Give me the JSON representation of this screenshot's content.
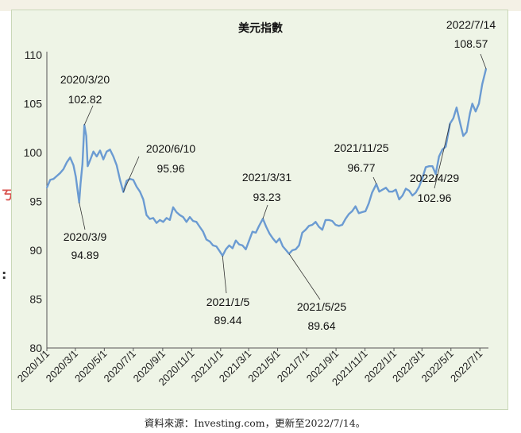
{
  "chart_data": {
    "type": "line",
    "title": "美元指數",
    "xlabel": "",
    "ylabel": "",
    "ylim": [
      80,
      110
    ],
    "yticks": [
      "110",
      "105",
      "100",
      "95",
      "90",
      "85",
      "80"
    ],
    "xticks": [
      "2020/1/1",
      "2020/3/1",
      "2020/5/1",
      "2020/7/1",
      "2020/9/1",
      "2020/11/1",
      "2021/1/1",
      "2021/3/1",
      "2021/5/1",
      "2021/7/1",
      "2021/9/1",
      "2021/11/1",
      "2022/1/1",
      "2022/3/1",
      "2022/5/1",
      "2022/7/1"
    ],
    "grid": false,
    "line_color": "#6b9bd2",
    "series": [
      {
        "points": [
          [
            "2020-01-01",
            96.4
          ],
          [
            "2020-01-08",
            97.2
          ],
          [
            "2020-01-15",
            97.3
          ],
          [
            "2020-01-22",
            97.6
          ],
          [
            "2020-01-29",
            97.9
          ],
          [
            "2020-02-05",
            98.3
          ],
          [
            "2020-02-12",
            99.0
          ],
          [
            "2020-02-19",
            99.5
          ],
          [
            "2020-02-26",
            98.7
          ],
          [
            "2020-03-02",
            97.5
          ],
          [
            "2020-03-09",
            94.89
          ],
          [
            "2020-03-12",
            96.8
          ],
          [
            "2020-03-16",
            98.8
          ],
          [
            "2020-03-20",
            102.82
          ],
          [
            "2020-03-24",
            101.7
          ],
          [
            "2020-03-27",
            98.6
          ],
          [
            "2020-04-01",
            99.2
          ],
          [
            "2020-04-08",
            100.1
          ],
          [
            "2020-04-15",
            99.6
          ],
          [
            "2020-04-22",
            100.2
          ],
          [
            "2020-04-29",
            99.3
          ],
          [
            "2020-05-06",
            100.1
          ],
          [
            "2020-05-13",
            100.3
          ],
          [
            "2020-05-20",
            99.6
          ],
          [
            "2020-05-27",
            98.7
          ],
          [
            "2020-06-03",
            97.2
          ],
          [
            "2020-06-10",
            95.96
          ],
          [
            "2020-06-17",
            97.1
          ],
          [
            "2020-06-24",
            97.3
          ],
          [
            "2020-07-01",
            97.2
          ],
          [
            "2020-07-08",
            96.5
          ],
          [
            "2020-07-15",
            96.0
          ],
          [
            "2020-07-22",
            95.2
          ],
          [
            "2020-07-29",
            93.6
          ],
          [
            "2020-08-05",
            93.2
          ],
          [
            "2020-08-12",
            93.3
          ],
          [
            "2020-08-19",
            92.8
          ],
          [
            "2020-08-26",
            93.1
          ],
          [
            "2020-09-02",
            92.9
          ],
          [
            "2020-09-09",
            93.3
          ],
          [
            "2020-09-16",
            93.1
          ],
          [
            "2020-09-23",
            94.4
          ],
          [
            "2020-09-30",
            93.9
          ],
          [
            "2020-10-07",
            93.6
          ],
          [
            "2020-10-14",
            93.4
          ],
          [
            "2020-10-21",
            92.9
          ],
          [
            "2020-10-28",
            93.4
          ],
          [
            "2020-11-04",
            93.0
          ],
          [
            "2020-11-11",
            92.9
          ],
          [
            "2020-11-18",
            92.4
          ],
          [
            "2020-11-25",
            91.9
          ],
          [
            "2020-12-02",
            91.1
          ],
          [
            "2020-12-09",
            90.9
          ],
          [
            "2020-12-16",
            90.5
          ],
          [
            "2020-12-23",
            90.4
          ],
          [
            "2020-12-30",
            89.9
          ],
          [
            "2021-01-05",
            89.44
          ],
          [
            "2021-01-12",
            90.1
          ],
          [
            "2021-01-19",
            90.5
          ],
          [
            "2021-01-26",
            90.2
          ],
          [
            "2021-02-02",
            91.0
          ],
          [
            "2021-02-09",
            90.6
          ],
          [
            "2021-02-16",
            90.5
          ],
          [
            "2021-02-23",
            90.1
          ],
          [
            "2021-03-02",
            91.0
          ],
          [
            "2021-03-09",
            91.9
          ],
          [
            "2021-03-16",
            91.8
          ],
          [
            "2021-03-23",
            92.5
          ],
          [
            "2021-03-31",
            93.23
          ],
          [
            "2021-04-07",
            92.4
          ],
          [
            "2021-04-14",
            91.7
          ],
          [
            "2021-04-21",
            91.2
          ],
          [
            "2021-04-28",
            90.8
          ],
          [
            "2021-05-05",
            91.2
          ],
          [
            "2021-05-12",
            90.4
          ],
          [
            "2021-05-19",
            90.0
          ],
          [
            "2021-05-25",
            89.64
          ],
          [
            "2021-06-01",
            90.0
          ],
          [
            "2021-06-08",
            90.1
          ],
          [
            "2021-06-15",
            90.5
          ],
          [
            "2021-06-22",
            91.8
          ],
          [
            "2021-06-29",
            92.1
          ],
          [
            "2021-07-06",
            92.5
          ],
          [
            "2021-07-13",
            92.6
          ],
          [
            "2021-07-20",
            92.9
          ],
          [
            "2021-07-27",
            92.4
          ],
          [
            "2021-08-03",
            92.1
          ],
          [
            "2021-08-10",
            93.1
          ],
          [
            "2021-08-17",
            93.1
          ],
          [
            "2021-08-24",
            93.0
          ],
          [
            "2021-08-31",
            92.6
          ],
          [
            "2021-09-07",
            92.5
          ],
          [
            "2021-09-14",
            92.6
          ],
          [
            "2021-09-21",
            93.2
          ],
          [
            "2021-09-28",
            93.7
          ],
          [
            "2021-10-05",
            94.0
          ],
          [
            "2021-10-12",
            94.5
          ],
          [
            "2021-10-19",
            93.8
          ],
          [
            "2021-10-26",
            93.9
          ],
          [
            "2021-11-02",
            94.0
          ],
          [
            "2021-11-09",
            94.8
          ],
          [
            "2021-11-16",
            95.9
          ],
          [
            "2021-11-25",
            96.77
          ],
          [
            "2021-12-01",
            96.0
          ],
          [
            "2021-12-08",
            96.2
          ],
          [
            "2021-12-15",
            96.4
          ],
          [
            "2021-12-22",
            96.0
          ],
          [
            "2021-12-29",
            96.0
          ],
          [
            "2022-01-05",
            96.2
          ],
          [
            "2022-01-12",
            95.2
          ],
          [
            "2022-01-19",
            95.6
          ],
          [
            "2022-01-26",
            96.3
          ],
          [
            "2022-02-02",
            96.1
          ],
          [
            "2022-02-09",
            95.6
          ],
          [
            "2022-02-16",
            95.9
          ],
          [
            "2022-02-23",
            96.5
          ],
          [
            "2022-03-02",
            97.4
          ],
          [
            "2022-03-09",
            98.5
          ],
          [
            "2022-03-16",
            98.6
          ],
          [
            "2022-03-23",
            98.6
          ],
          [
            "2022-03-30",
            97.8
          ],
          [
            "2022-04-06",
            99.6
          ],
          [
            "2022-04-13",
            100.3
          ],
          [
            "2022-04-20",
            100.6
          ],
          [
            "2022-04-29",
            102.96
          ],
          [
            "2022-05-06",
            103.5
          ],
          [
            "2022-05-13",
            104.6
          ],
          [
            "2022-05-20",
            103.1
          ],
          [
            "2022-05-27",
            101.7
          ],
          [
            "2022-06-03",
            102.1
          ],
          [
            "2022-06-10",
            104.0
          ],
          [
            "2022-06-15",
            105.0
          ],
          [
            "2022-06-22",
            104.2
          ],
          [
            "2022-06-29",
            105.0
          ],
          [
            "2022-07-06",
            107.0
          ],
          [
            "2022-07-14",
            108.57
          ]
        ]
      }
    ],
    "annotations": [
      {
        "date_label": "2020/3/20",
        "value_label": "102.82",
        "x": "2020-03-20",
        "y": 102.82
      },
      {
        "date_label": "2020/3/9",
        "value_label": "94.89",
        "x": "2020-03-09",
        "y": 94.89
      },
      {
        "date_label": "2020/6/10",
        "value_label": "95.96",
        "x": "2020-06-10",
        "y": 95.96
      },
      {
        "date_label": "2021/1/5",
        "value_label": "89.44",
        "x": "2021-01-05",
        "y": 89.44
      },
      {
        "date_label": "2021/3/31",
        "value_label": "93.23",
        "x": "2021-03-31",
        "y": 93.23
      },
      {
        "date_label": "2021/5/25",
        "value_label": "89.64",
        "x": "2021-05-25",
        "y": 89.64
      },
      {
        "date_label": "2021/11/25",
        "value_label": "96.77",
        "x": "2021-11-25",
        "y": 96.77
      },
      {
        "date_label": "2022/4/29",
        "value_label": "102.96",
        "x": "2022-04-29",
        "y": 102.96
      },
      {
        "date_label": "2022/7/14",
        "value_label": "108.57",
        "x": "2022-07-14",
        "y": 108.57
      }
    ]
  },
  "source_text": "資料來源：Investing.com，更新至2022/7/14。",
  "left_marks": [
    "ㄎ",
    ":"
  ]
}
